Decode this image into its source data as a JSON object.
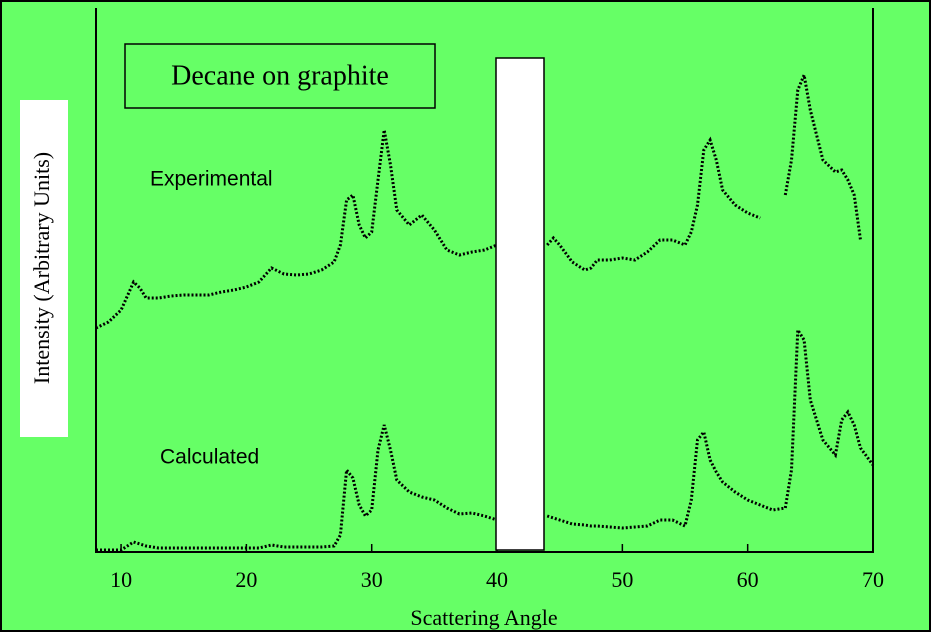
{
  "chart_data": {
    "type": "line",
    "title": "Decane on graphite",
    "xlabel": "Scattering Angle",
    "ylabel": "Intensity (Arbitrary Units)",
    "annotations": [
      "Experimental",
      "Calculated"
    ],
    "x": [
      8,
      9,
      10,
      11,
      11.5,
      12,
      13,
      14,
      15,
      16,
      17,
      18,
      19,
      20,
      21,
      22,
      23,
      24,
      25,
      26,
      27,
      27.5,
      28,
      28.5,
      29,
      29.5,
      30,
      30.5,
      31,
      31.5,
      32,
      33,
      34,
      35,
      36,
      37,
      38,
      39,
      40,
      42,
      44,
      44.5,
      45,
      46,
      47,
      47.5,
      48,
      49,
      50,
      51,
      52,
      53,
      54,
      55,
      55.5,
      56,
      56.5,
      57,
      57.5,
      58,
      59,
      60,
      61,
      62,
      63,
      63.5,
      64,
      64.5,
      65,
      66,
      67,
      67.5,
      68,
      68.5,
      69,
      70
    ],
    "series": [
      {
        "name": "Experimental",
        "color": "#000000",
        "values": [
          224,
          230,
          242,
          270,
          264,
          254,
          254,
          256,
          257,
          257,
          257,
          260,
          262,
          265,
          270,
          284,
          278,
          277,
          278,
          282,
          290,
          307,
          352,
          357,
          327,
          314,
          320,
          372,
          422,
          387,
          342,
          327,
          337,
          322,
          302,
          297,
          300,
          302,
          307,
          null,
          307,
          314,
          307,
          290,
          282,
          284,
          292,
          292,
          294,
          292,
          300,
          312,
          312,
          307,
          320,
          347,
          402,
          412,
          392,
          362,
          347,
          339,
          334,
          null,
          357,
          392,
          462,
          477,
          442,
          392,
          380,
          382,
          372,
          357,
          312,
          null
        ]
      },
      {
        "name": "Calculated",
        "color": "#000000",
        "values": [
          2,
          2,
          2,
          10,
          8,
          6,
          4,
          4,
          4,
          4,
          4,
          4,
          4,
          4,
          4,
          7,
          5,
          5,
          5,
          5,
          6,
          17,
          82,
          74,
          47,
          36,
          42,
          102,
          127,
          102,
          72,
          60,
          55,
          52,
          44,
          38,
          39,
          36,
          32,
          null,
          36,
          34,
          32,
          28,
          27,
          26,
          26,
          25,
          24,
          25,
          26,
          32,
          32,
          26,
          52,
          112,
          120,
          92,
          80,
          70,
          60,
          52,
          47,
          42,
          44,
          82,
          222,
          212,
          152,
          112,
          97,
          132,
          140,
          127,
          104,
          87
        ]
      }
    ],
    "xlim": [
      8,
      70
    ],
    "xticks": [
      10,
      20,
      30,
      40,
      50,
      60,
      70
    ],
    "ylim": [
      0,
      544
    ],
    "background": "#66ff66"
  }
}
